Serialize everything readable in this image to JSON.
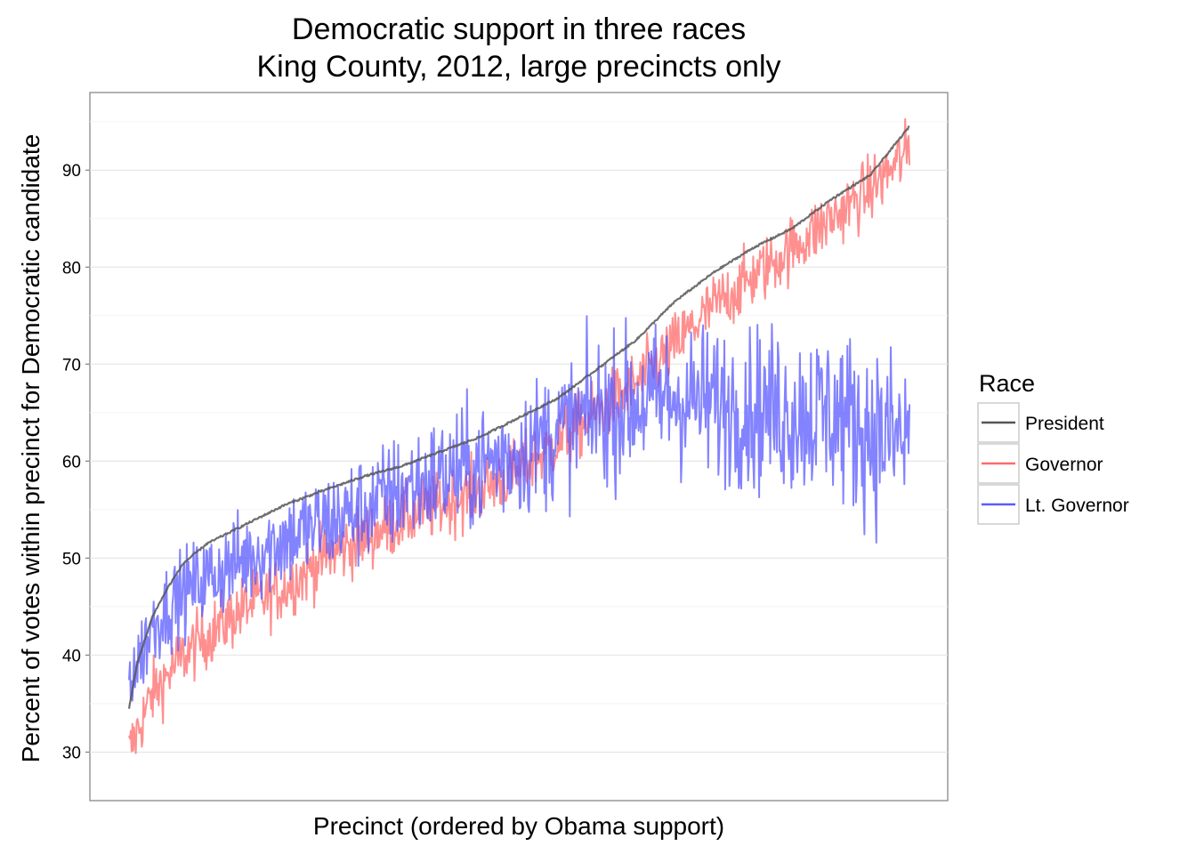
{
  "chart_data": {
    "type": "line",
    "title": "Democratic support in three races",
    "subtitle": "King County, 2012, large precincts only",
    "xlabel": "Precinct (ordered by Obama support)",
    "ylabel": "Percent of votes within precinct for Democratic candidate",
    "ylim": [
      25,
      98
    ],
    "y_ticks": [
      30,
      40,
      50,
      60,
      70,
      80,
      90
    ],
    "x_ticks": [],
    "grid": true,
    "legend": {
      "title": "Race",
      "position": "right",
      "entries": [
        {
          "name": "President",
          "color": "#555555"
        },
        {
          "name": "Governor",
          "color": "#ff6a6a"
        },
        {
          "name": "Lt. Governor",
          "color": "#5a5aff"
        }
      ]
    },
    "n_points": 920,
    "series": [
      {
        "name": "President",
        "color": "#555555",
        "x_fraction": [
          0.0,
          0.01,
          0.02,
          0.03,
          0.05,
          0.07,
          0.1,
          0.15,
          0.2,
          0.25,
          0.3,
          0.35,
          0.4,
          0.45,
          0.5,
          0.55,
          0.6,
          0.65,
          0.7,
          0.75,
          0.8,
          0.85,
          0.9,
          0.95,
          1.0
        ],
        "values": [
          34.5,
          39,
          41.5,
          44,
          47,
          49.5,
          51.5,
          53.5,
          55.5,
          57,
          58.4,
          59.5,
          61,
          62.5,
          64.5,
          66.5,
          69.5,
          72.5,
          76.5,
          79.5,
          82,
          84,
          87,
          89.5,
          94.5
        ]
      },
      {
        "name": "Governor",
        "color": "#ff6a6a",
        "x_fraction": [
          0.0,
          0.01,
          0.02,
          0.03,
          0.05,
          0.07,
          0.1,
          0.15,
          0.2,
          0.25,
          0.3,
          0.35,
          0.4,
          0.45,
          0.5,
          0.55,
          0.6,
          0.65,
          0.7,
          0.75,
          0.8,
          0.85,
          0.9,
          0.95,
          1.0
        ],
        "values": [
          30,
          32,
          34,
          36,
          38,
          40,
          42,
          45,
          47,
          50,
          52,
          54,
          55.5,
          57,
          59,
          62,
          65,
          68,
          72,
          76,
          79,
          82,
          85,
          88,
          92
        ],
        "noise": 2.4
      },
      {
        "name": "Lt. Governor",
        "color": "#5a5aff",
        "x_fraction": [
          0.0,
          0.01,
          0.02,
          0.03,
          0.05,
          0.07,
          0.1,
          0.15,
          0.2,
          0.25,
          0.3,
          0.35,
          0.4,
          0.45,
          0.5,
          0.55,
          0.6,
          0.65,
          0.7,
          0.75,
          0.8,
          0.85,
          0.9,
          0.95,
          1.0
        ],
        "values": [
          38,
          39,
          41,
          43,
          45,
          46.5,
          48,
          50,
          52,
          53.5,
          55,
          57,
          58.5,
          59.5,
          61,
          63,
          65,
          66,
          66.5,
          66,
          65.5,
          65,
          65,
          63,
          62
        ],
        "noise": 4.2
      }
    ]
  }
}
